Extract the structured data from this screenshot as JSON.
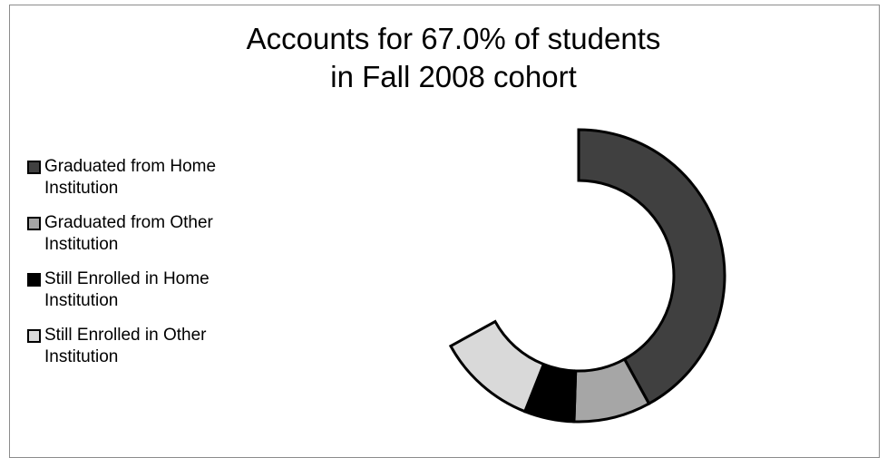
{
  "chart_data": {
    "type": "pie",
    "subtype": "donut",
    "title_line1": "Accounts for 67.0% of students",
    "title_line2": "in Fall 2008 cohort",
    "legend_position": "left",
    "slices": [
      {
        "name": "Graduated from Home Institution",
        "value": 42.0,
        "color": "#404040"
      },
      {
        "name": "Graduated from Other Institution",
        "value": 8.5,
        "color": "#a6a6a6"
      },
      {
        "name": "Still Enrolled in Home Institution",
        "value": 5.5,
        "color": "#000000"
      },
      {
        "name": "Still Enrolled in Other Institution",
        "value": 11.0,
        "color": "#d9d9d9"
      }
    ],
    "total_percent": 67.0
  },
  "legend": {
    "item_0": "Graduated from Home",
    "item_0b": "Institution",
    "item_1": "Graduated from Other",
    "item_1b": "Institution",
    "item_2": "Still Enrolled in Home",
    "item_2b": "Institution",
    "item_3": "Still Enrolled in Other",
    "item_3b": "Institution"
  }
}
